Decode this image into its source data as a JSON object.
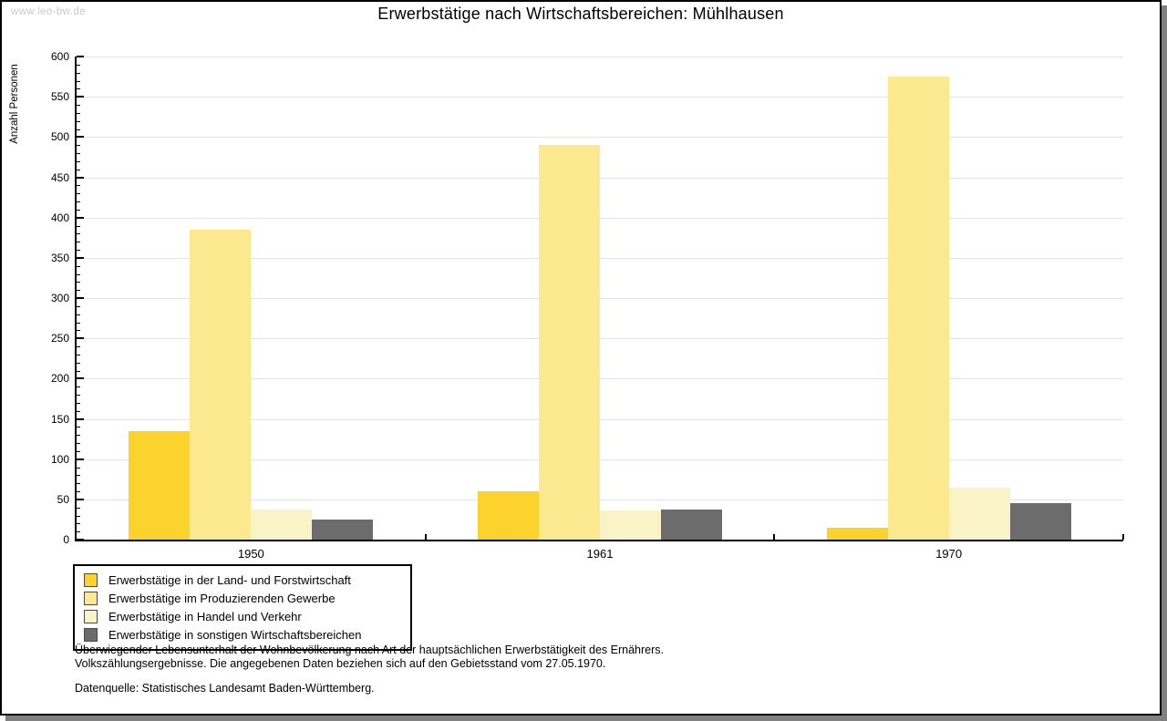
{
  "watermark": "www.leo-bw.de",
  "title": "Erwerbstätige nach Wirtschaftsbereichen: Mühlhausen",
  "chart_data": {
    "type": "bar",
    "title": "Erwerbstätige nach Wirtschaftsbereichen: Mühlhausen",
    "xlabel": "",
    "ylabel": "Anzahl Personen",
    "categories": [
      "1950",
      "1961",
      "1970"
    ],
    "series": [
      {
        "name": "Erwerbstätige in der Land- und Forstwirtschaft",
        "color": "#FBD32C",
        "values": [
          135,
          60,
          15
        ]
      },
      {
        "name": "Erwerbstätige im Produzierenden Gewerbe",
        "color": "#FCE88E",
        "values": [
          385,
          490,
          575
        ]
      },
      {
        "name": "Erwerbstätige in Handel und Verkehr",
        "color": "#FBF3C8",
        "values": [
          37,
          36,
          65
        ]
      },
      {
        "name": "Erwerbstätige in sonstigen Wirtschaftsbereichen",
        "color": "#6C6C6C",
        "values": [
          25,
          37,
          45
        ]
      }
    ],
    "ylim": [
      0,
      600
    ],
    "ytick_step": 50,
    "minor_tick_step": 10,
    "grid": true,
    "legend_position": "bottom-left"
  },
  "footer": {
    "line1": "Überwiegender Lebensunterhalt der Wohnbevölkerung nach Art der hauptsächlichen Erwerbstätigkeit des Ernährers.",
    "line2": "Volkszählungsergebnisse. Die angegebenen Daten beziehen sich auf den Gebietsstand vom 27.05.1970.",
    "source": "Datenquelle: Statistisches Landesamt Baden-Württemberg."
  },
  "colors": {
    "panel_border": "#000000",
    "shadow": "#808080",
    "grid": "#e3e3e3",
    "axis": "#000000",
    "watermark": "#c9c9c9"
  }
}
